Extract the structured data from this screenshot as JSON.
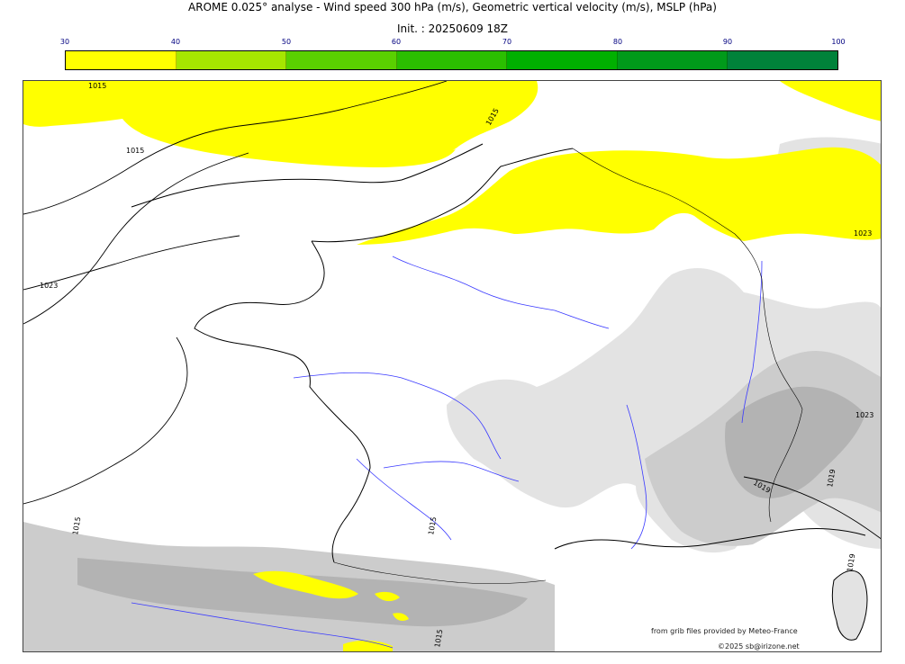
{
  "header": {
    "title": "AROME 0.025° analyse - Wind speed 300 hPa (m/s), Geometric vertical velocity (m/s), MSLP (hPa)",
    "subtitle": "Init. : 20250609 18Z"
  },
  "colorbar": {
    "ticks": [
      "30",
      "40",
      "50",
      "60",
      "70",
      "80",
      "90",
      "100"
    ],
    "colors": [
      "#ffff00",
      "#a6e600",
      "#5ad000",
      "#2bbf00",
      "#00b000",
      "#009a1a",
      "#00823a",
      "#006e4a"
    ]
  },
  "map": {
    "wind_colors": {
      "band_30_40": "#ffff00"
    },
    "terrain_colors": {
      "light": "#e3e3e3",
      "medium": "#cccccc",
      "dark": "#b3b3b3"
    },
    "river_color": "#3a3aff",
    "isobar_labels": [
      "1015",
      "1015",
      "1023",
      "1023",
      "1023",
      "1015",
      "1015",
      "1015",
      "1015",
      "1019",
      "1019",
      "1019"
    ]
  },
  "footer": {
    "source_credit": "from grib files provided by Meteo-France",
    "copyright": "©2025 sb@irizone.net"
  }
}
